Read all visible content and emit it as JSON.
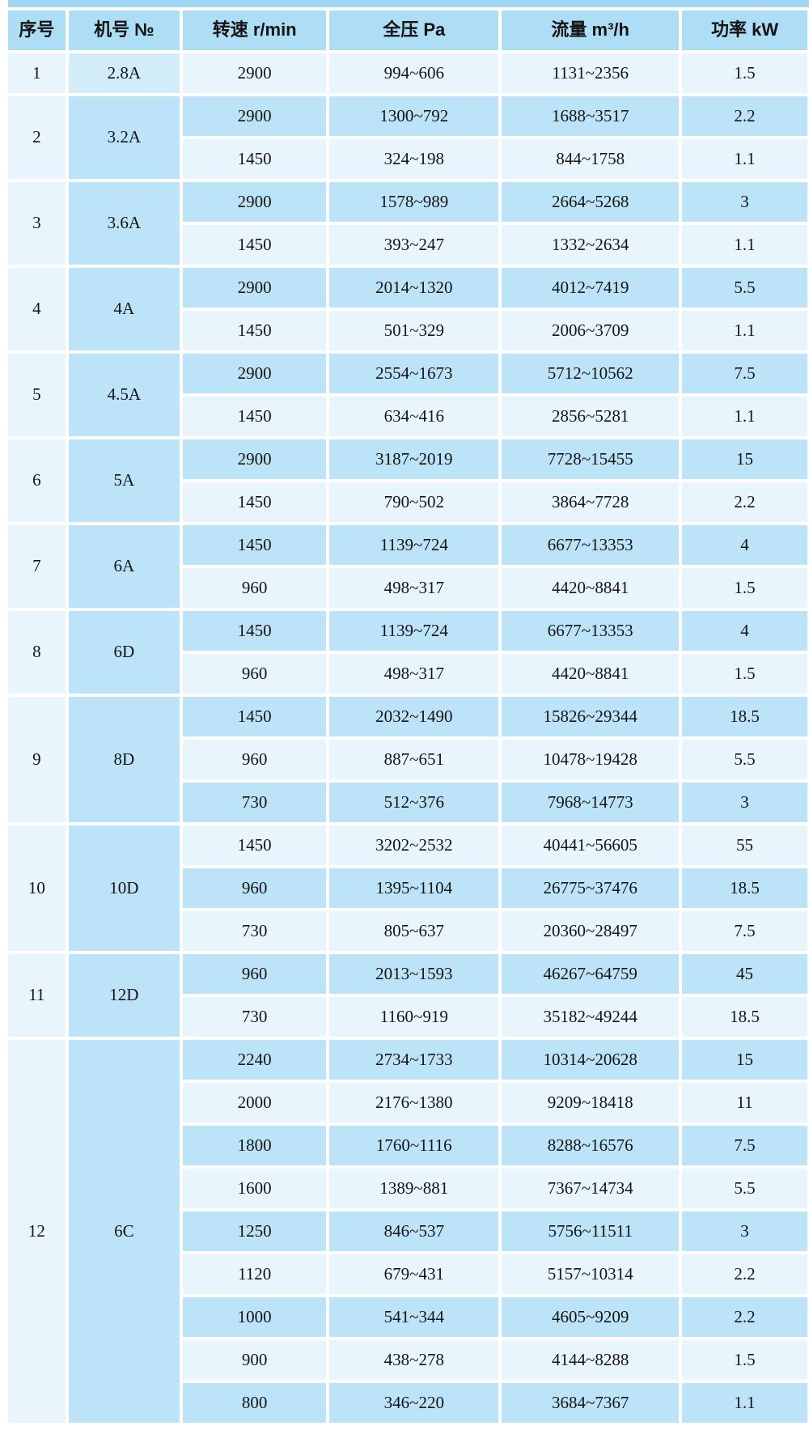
{
  "colors": {
    "row_medium": "#bce3f8",
    "row_pale": "#e9f5fd",
    "header_bg": "#aeddf6",
    "strip_bg": "#a2d6f2",
    "serial_col_bg": "#e9f5fd",
    "machine_col_bg": "#bce3f8",
    "machine_first_bg": "#d3ecfa",
    "text": "#141414"
  },
  "table": {
    "columns": [
      {
        "key": "serial",
        "label": "序号"
      },
      {
        "key": "machine",
        "label": "机号 №"
      },
      {
        "key": "speed",
        "label": "转速 r/min"
      },
      {
        "key": "pressure",
        "label": "全压 Pa"
      },
      {
        "key": "flow",
        "label": "流量 m³/h"
      },
      {
        "key": "power",
        "label": "功率 kW"
      }
    ],
    "groups": [
      {
        "serial": "1",
        "machine": "2.8A",
        "rows": [
          [
            "2900",
            "994~606",
            "1131~2356",
            "1.5"
          ]
        ]
      },
      {
        "serial": "2",
        "machine": "3.2A",
        "rows": [
          [
            "2900",
            "1300~792",
            "1688~3517",
            "2.2"
          ],
          [
            "1450",
            "324~198",
            "844~1758",
            "1.1"
          ]
        ]
      },
      {
        "serial": "3",
        "machine": "3.6A",
        "rows": [
          [
            "2900",
            "1578~989",
            "2664~5268",
            "3"
          ],
          [
            "1450",
            "393~247",
            "1332~2634",
            "1.1"
          ]
        ]
      },
      {
        "serial": "4",
        "machine": "4A",
        "rows": [
          [
            "2900",
            "2014~1320",
            "4012~7419",
            "5.5"
          ],
          [
            "1450",
            "501~329",
            "2006~3709",
            "1.1"
          ]
        ]
      },
      {
        "serial": "5",
        "machine": "4.5A",
        "rows": [
          [
            "2900",
            "2554~1673",
            "5712~10562",
            "7.5"
          ],
          [
            "1450",
            "634~416",
            "2856~5281",
            "1.1"
          ]
        ]
      },
      {
        "serial": "6",
        "machine": "5A",
        "rows": [
          [
            "2900",
            "3187~2019",
            "7728~15455",
            "15"
          ],
          [
            "1450",
            "790~502",
            "3864~7728",
            "2.2"
          ]
        ]
      },
      {
        "serial": "7",
        "machine": "6A",
        "rows": [
          [
            "1450",
            "1139~724",
            "6677~13353",
            "4"
          ],
          [
            "960",
            "498~317",
            "4420~8841",
            "1.5"
          ]
        ]
      },
      {
        "serial": "8",
        "machine": "6D",
        "rows": [
          [
            "1450",
            "1139~724",
            "6677~13353",
            "4"
          ],
          [
            "960",
            "498~317",
            "4420~8841",
            "1.5"
          ]
        ]
      },
      {
        "serial": "9",
        "machine": "8D",
        "rows": [
          [
            "1450",
            "2032~1490",
            "15826~29344",
            "18.5"
          ],
          [
            "960",
            "887~651",
            "10478~19428",
            "5.5"
          ],
          [
            "730",
            "512~376",
            "7968~14773",
            "3"
          ]
        ]
      },
      {
        "serial": "10",
        "machine": "10D",
        "rows": [
          [
            "1450",
            "3202~2532",
            "40441~56605",
            "55"
          ],
          [
            "960",
            "1395~1104",
            "26775~37476",
            "18.5"
          ],
          [
            "730",
            "805~637",
            "20360~28497",
            "7.5"
          ]
        ]
      },
      {
        "serial": "11",
        "machine": "12D",
        "rows": [
          [
            "960",
            "2013~1593",
            "46267~64759",
            "45"
          ],
          [
            "730",
            "1160~919",
            "35182~49244",
            "18.5"
          ]
        ]
      },
      {
        "serial": "12",
        "machine": "6C",
        "rows": [
          [
            "2240",
            "2734~1733",
            "10314~20628",
            "15"
          ],
          [
            "2000",
            "2176~1380",
            "9209~18418",
            "11"
          ],
          [
            "1800",
            "1760~1116",
            "8288~16576",
            "7.5"
          ],
          [
            "1600",
            "1389~881",
            "7367~14734",
            "5.5"
          ],
          [
            "1250",
            "846~537",
            "5756~11511",
            "3"
          ],
          [
            "1120",
            "679~431",
            "5157~10314",
            "2.2"
          ],
          [
            "1000",
            "541~344",
            "4605~9209",
            "2.2"
          ],
          [
            "900",
            "438~278",
            "4144~8288",
            "1.5"
          ],
          [
            "800",
            "346~220",
            "3684~7367",
            "1.1"
          ]
        ]
      }
    ]
  }
}
